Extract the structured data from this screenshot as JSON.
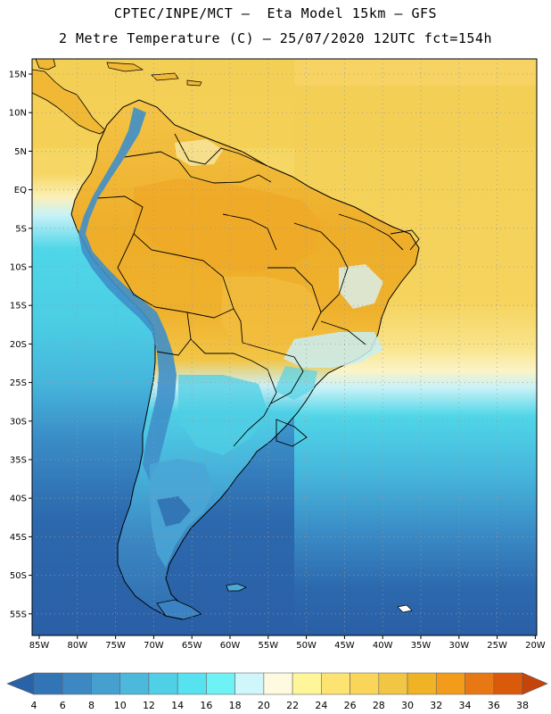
{
  "header": {
    "title_line1": "CPTEC/INPE/MCT –  Eta Model 15km – GFS",
    "title_line2": "2 Metre Temperature (C) – 25/07/2020 12UTC fct=154h"
  },
  "map": {
    "lat_labels": [
      "15N",
      "10N",
      "5N",
      "EQ",
      "5S",
      "10S",
      "15S",
      "20S",
      "25S",
      "30S",
      "35S",
      "40S",
      "45S",
      "50S",
      "55S"
    ],
    "lon_labels": [
      "85W",
      "80W",
      "75W",
      "70W",
      "65W",
      "60W",
      "55W",
      "50W",
      "45W",
      "40W",
      "35W",
      "30W",
      "25W",
      "20W"
    ],
    "gridlines": "dotted",
    "colors": {
      "ocean_deep": "#2a62a8",
      "ocean_mid": "#3a86c4",
      "ocean_cyan": "#4bd3e6",
      "ocean_light": "#c9f2f7",
      "tropics": "#f4d258",
      "land_warm": "#f0b833",
      "land_hot": "#eea726",
      "andes": "#3f94cc",
      "patagonia": "#4aa9d8",
      "borders": "#000000"
    }
  },
  "colorbar": {
    "labels": [
      "4",
      "6",
      "8",
      "10",
      "12",
      "14",
      "16",
      "18",
      "20",
      "22",
      "24",
      "26",
      "28",
      "30",
      "32",
      "34",
      "36",
      "38"
    ],
    "colors": [
      "#2a62a8",
      "#3275b6",
      "#3d88c2",
      "#45a0cf",
      "#4bb8dc",
      "#4fd0e6",
      "#56e2ee",
      "#6ef2f6",
      "#cff6fb",
      "#fefae0",
      "#fff69a",
      "#fde472",
      "#f9d55a",
      "#f3c544",
      "#efb325",
      "#f39c1c",
      "#e77814",
      "#d95a0b",
      "#c6440a"
    ]
  }
}
